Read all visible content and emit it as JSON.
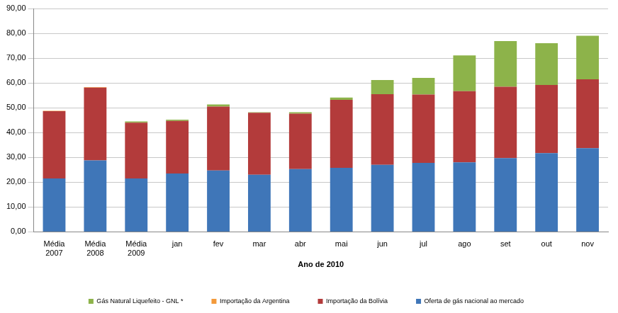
{
  "chart_data": {
    "type": "bar",
    "stacked": true,
    "grid": true,
    "legend": "bottom",
    "x_label": "Ano de 2010",
    "categories": [
      "Média 2007",
      "Média 2008",
      "Média 2009",
      "jan",
      "fev",
      "mar",
      "abr",
      "mai",
      "jun",
      "jul",
      "ago",
      "set",
      "out",
      "nov"
    ],
    "ylim": [
      0,
      90
    ],
    "yticks": [
      {
        "value": 0,
        "label": "0,00"
      },
      {
        "value": 10,
        "label": "10,00"
      },
      {
        "value": 20,
        "label": "20,00"
      },
      {
        "value": 30,
        "label": "30,00"
      },
      {
        "value": 40,
        "label": "40,00"
      },
      {
        "value": 50,
        "label": "50,00"
      },
      {
        "value": 60,
        "label": "60,00"
      },
      {
        "value": 70,
        "label": "70,00"
      },
      {
        "value": 80,
        "label": "80,00"
      },
      {
        "value": 90,
        "label": "90,00"
      }
    ],
    "series": [
      {
        "name": "Oferta de gás nacional ao mercado",
        "color": "#3f76b8",
        "values": [
          21.5,
          28.8,
          21.5,
          23.5,
          24.7,
          23.0,
          25.3,
          25.8,
          27.0,
          27.8,
          28.0,
          29.7,
          31.7,
          33.7
        ]
      },
      {
        "name": "Importação da Bolívia",
        "color": "#b33b3b",
        "values": [
          27.1,
          29.3,
          22.5,
          21.2,
          25.8,
          25.0,
          22.3,
          27.4,
          28.5,
          27.5,
          28.7,
          28.8,
          27.5,
          27.8
        ]
      },
      {
        "name": "Importação da Argentina",
        "color": "#f39a3b",
        "values": [
          0.2,
          0.2,
          0,
          0,
          0,
          0,
          0,
          0,
          0,
          0,
          0,
          0,
          0,
          0
        ]
      },
      {
        "name": "Gás Natural Liquefeito - GNL *",
        "color": "#8db34a",
        "values": [
          0,
          0,
          0.5,
          0.5,
          0.8,
          0.2,
          0.6,
          0.9,
          5.7,
          6.7,
          14.4,
          18.4,
          16.8,
          17.5
        ]
      }
    ]
  }
}
